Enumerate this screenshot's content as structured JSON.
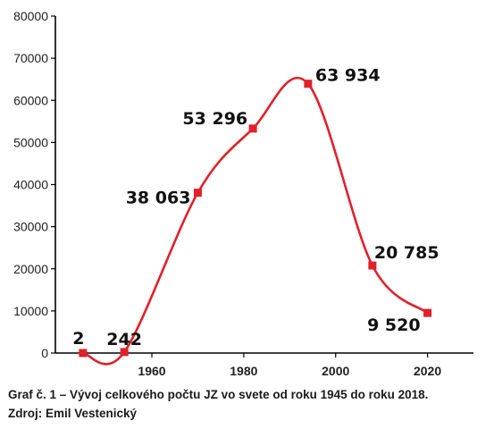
{
  "chart_data": {
    "type": "line",
    "x": [
      1945,
      1954,
      1970,
      1982,
      1994,
      2008,
      2020
    ],
    "values": [
      2,
      242,
      38063,
      53296,
      63934,
      20785,
      9520
    ],
    "data_labels": [
      "2",
      "242",
      "38 063",
      "53 296",
      "63 934",
      "20 785",
      "9 520"
    ],
    "y_ticks": [
      0,
      10000,
      20000,
      30000,
      40000,
      50000,
      60000,
      70000,
      80000
    ],
    "x_ticks": [
      1960,
      1980,
      2000,
      2020
    ],
    "xlim": [
      1939,
      2030
    ],
    "ylim": [
      0,
      80000
    ],
    "line_color": "#e0202a",
    "marker_color": "#e0202a",
    "grid": false,
    "title": "",
    "xlabel": "",
    "ylabel": ""
  },
  "caption": {
    "line1": "Graf č. 1 – Vývoj celkového počtu JZ vo svete od roku 1945 do roku 2018.",
    "line2": "Zdroj: Emil Vestenický"
  }
}
